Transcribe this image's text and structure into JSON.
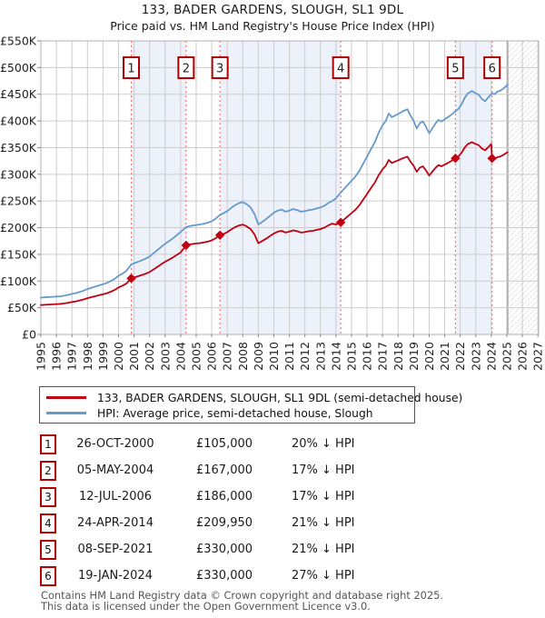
{
  "title": "133, BADER GARDENS, SLOUGH, SL1 9DL",
  "subtitle": "Price paid vs. HM Land Registry's House Price Index (HPI)",
  "sales": [
    {
      "n": "1",
      "date": "26-OCT-2000",
      "price": "£105,000",
      "pct": "20% ↓ HPI",
      "year": 2000.82,
      "value_k": 105
    },
    {
      "n": "2",
      "date": "05-MAY-2004",
      "price": "£167,000",
      "pct": "17% ↓ HPI",
      "year": 2004.35,
      "value_k": 167
    },
    {
      "n": "3",
      "date": "12-JUL-2006",
      "price": "£186,000",
      "pct": "17% ↓ HPI",
      "year": 2006.53,
      "value_k": 186
    },
    {
      "n": "4",
      "date": "24-APR-2014",
      "price": "£209,950",
      "pct": "21% ↓ HPI",
      "year": 2014.31,
      "value_k": 209.95
    },
    {
      "n": "5",
      "date": "08-SEP-2021",
      "price": "£330,000",
      "pct": "21% ↓ HPI",
      "year": 2021.69,
      "value_k": 330
    },
    {
      "n": "6",
      "date": "19-JAN-2024",
      "price": "£330,000",
      "pct": "27% ↓ HPI",
      "year": 2024.05,
      "value_k": 330
    }
  ],
  "footer": {
    "line1": "Contains HM Land Registry data © Crown copyright and database right 2025.",
    "line2": "This data is licensed under the Open Government Licence v3.0."
  },
  "colors": {
    "price_line": "#c00010",
    "hpi_line": "#6699cc",
    "sale_dashed": "#ff7070",
    "band": "#edf1fa",
    "grid": "#cccccc",
    "plot_border": "#b0b0b0",
    "flag_border": "#b00000",
    "hatch": "#c4c4c4",
    "future_edge": "#999999"
  },
  "chart_data": {
    "type": "line",
    "title": "133, BADER GARDENS, SLOUGH, SL1 9DL",
    "subtitle": "Price paid vs. HM Land Registry's House Price Index (HPI)",
    "xlim": [
      1995,
      2027.05
    ],
    "ylim_k": [
      0,
      550
    ],
    "x_ticks": [
      1995,
      1996,
      1997,
      1998,
      1999,
      2000,
      2001,
      2002,
      2003,
      2004,
      2005,
      2006,
      2007,
      2008,
      2009,
      2010,
      2011,
      2012,
      2013,
      2014,
      2015,
      2016,
      2017,
      2018,
      2019,
      2020,
      2021,
      2022,
      2023,
      2024,
      2025,
      2026,
      2027
    ],
    "y_ticks_k": [
      0,
      50,
      100,
      150,
      200,
      250,
      300,
      350,
      400,
      450,
      500,
      550
    ],
    "y_tick_labels": [
      "£0",
      "£50K",
      "£100K",
      "£150K",
      "£200K",
      "£250K",
      "£300K",
      "£350K",
      "£400K",
      "£450K",
      "£500K",
      "£550K"
    ],
    "grid": true,
    "legend_position": "below",
    "ownership_bands": [
      [
        2000.82,
        2004.35
      ],
      [
        2006.53,
        2014.31
      ],
      [
        2021.69,
        2024.05
      ]
    ],
    "future_from": 2025.05,
    "series": [
      {
        "name": "133, BADER GARDENS, SLOUGH, SL1 9DL (semi-detached house)",
        "color": "#c00010",
        "points": [
          [
            1995.0,
            55
          ],
          [
            1995.25,
            55.5
          ],
          [
            1995.5,
            56
          ],
          [
            1995.75,
            56.3
          ],
          [
            1996.0,
            56.8
          ],
          [
            1996.25,
            57.2
          ],
          [
            1996.5,
            58
          ],
          [
            1996.75,
            59.2
          ],
          [
            1997.0,
            60.8
          ],
          [
            1997.25,
            62
          ],
          [
            1997.5,
            63.6
          ],
          [
            1997.75,
            65.6
          ],
          [
            1998.0,
            68
          ],
          [
            1998.25,
            70
          ],
          [
            1998.5,
            71.6
          ],
          [
            1998.75,
            73.6
          ],
          [
            1999.0,
            75.2
          ],
          [
            1999.25,
            77.2
          ],
          [
            1999.5,
            80
          ],
          [
            1999.75,
            83.2
          ],
          [
            2000.0,
            88
          ],
          [
            2000.25,
            91.2
          ],
          [
            2000.5,
            95.2
          ],
          [
            2000.82,
            105
          ],
          [
            2001.0,
            107
          ],
          [
            2001.25,
            109
          ],
          [
            2001.5,
            111.3
          ],
          [
            2001.75,
            113.7
          ],
          [
            2002.0,
            117
          ],
          [
            2002.25,
            121.8
          ],
          [
            2002.5,
            126.6
          ],
          [
            2002.75,
            131.4
          ],
          [
            2003.0,
            136.2
          ],
          [
            2003.25,
            140.2
          ],
          [
            2003.5,
            144.2
          ],
          [
            2003.75,
            149
          ],
          [
            2004.0,
            153.8
          ],
          [
            2004.35,
            167
          ],
          [
            2004.5,
            168.3
          ],
          [
            2004.75,
            169.5
          ],
          [
            2005.0,
            170.4
          ],
          [
            2005.25,
            171.2
          ],
          [
            2005.5,
            172.4
          ],
          [
            2005.75,
            174.1
          ],
          [
            2006.0,
            176.2
          ],
          [
            2006.25,
            180.3
          ],
          [
            2006.53,
            186
          ],
          [
            2006.75,
            188.4
          ],
          [
            2007.0,
            191.7
          ],
          [
            2007.25,
            196.7
          ],
          [
            2007.5,
            200.9
          ],
          [
            2007.75,
            204.2
          ],
          [
            2008.0,
            205.8
          ],
          [
            2008.25,
            202.5
          ],
          [
            2008.5,
            197.5
          ],
          [
            2008.75,
            187.6
          ],
          [
            2009.0,
            171
          ],
          [
            2009.25,
            175.1
          ],
          [
            2009.5,
            179.3
          ],
          [
            2009.75,
            184.3
          ],
          [
            2010.0,
            189.2
          ],
          [
            2010.25,
            192.6
          ],
          [
            2010.5,
            194.2
          ],
          [
            2010.75,
            190.9
          ],
          [
            2011.0,
            192.6
          ],
          [
            2011.25,
            195
          ],
          [
            2011.5,
            193.4
          ],
          [
            2011.75,
            190.9
          ],
          [
            2012.0,
            191.7
          ],
          [
            2012.25,
            193.4
          ],
          [
            2012.5,
            194.2
          ],
          [
            2012.75,
            195.9
          ],
          [
            2013.0,
            197.5
          ],
          [
            2013.25,
            200
          ],
          [
            2013.5,
            204.2
          ],
          [
            2013.75,
            207.5
          ],
          [
            2014.0,
            206
          ],
          [
            2014.31,
            209.95
          ],
          [
            2014.5,
            214.7
          ],
          [
            2014.75,
            221
          ],
          [
            2015.0,
            227.4
          ],
          [
            2015.25,
            233.7
          ],
          [
            2015.5,
            241.6
          ],
          [
            2015.75,
            252.7
          ],
          [
            2016.0,
            263
          ],
          [
            2016.25,
            274
          ],
          [
            2016.5,
            284.3
          ],
          [
            2016.75,
            298.5
          ],
          [
            2017.0,
            309.6
          ],
          [
            2017.2,
            315.9
          ],
          [
            2017.4,
            327
          ],
          [
            2017.6,
            321.4
          ],
          [
            2017.8,
            323.8
          ],
          [
            2018.0,
            326.1
          ],
          [
            2018.3,
            330.1
          ],
          [
            2018.6,
            333.2
          ],
          [
            2018.8,
            323.8
          ],
          [
            2019.0,
            315.9
          ],
          [
            2019.2,
            304.8
          ],
          [
            2019.4,
            312.7
          ],
          [
            2019.6,
            315.1
          ],
          [
            2019.8,
            307.2
          ],
          [
            2020.0,
            297.7
          ],
          [
            2020.2,
            304.8
          ],
          [
            2020.4,
            311.9
          ],
          [
            2020.6,
            317.4
          ],
          [
            2020.8,
            315.1
          ],
          [
            2021.0,
            318.2
          ],
          [
            2021.2,
            321.4
          ],
          [
            2021.4,
            324.5
          ],
          [
            2021.69,
            330
          ],
          [
            2021.9,
            334
          ],
          [
            2022.1,
            341.1
          ],
          [
            2022.3,
            350.6
          ],
          [
            2022.5,
            356.9
          ],
          [
            2022.75,
            360.1
          ],
          [
            2023.0,
            356.9
          ],
          [
            2023.2,
            354.5
          ],
          [
            2023.4,
            348.2
          ],
          [
            2023.6,
            345
          ],
          [
            2023.8,
            350.6
          ],
          [
            2024.0,
            356.9
          ],
          [
            2024.05,
            330
          ],
          [
            2024.2,
            328.5
          ],
          [
            2024.4,
            332.2
          ],
          [
            2024.6,
            333.6
          ],
          [
            2024.8,
            336.6
          ],
          [
            2025.05,
            341.6
          ]
        ]
      },
      {
        "name": "HPI: Average price, semi-detached house, Slough",
        "color": "#6699cc",
        "points": [
          [
            1995.0,
            69
          ],
          [
            1995.25,
            69.5
          ],
          [
            1995.5,
            70
          ],
          [
            1995.75,
            70.5
          ],
          [
            1996.0,
            71
          ],
          [
            1996.25,
            71.5
          ],
          [
            1996.5,
            72.5
          ],
          [
            1996.75,
            74
          ],
          [
            1997.0,
            76
          ],
          [
            1997.25,
            77.5
          ],
          [
            1997.5,
            79.5
          ],
          [
            1997.75,
            82
          ],
          [
            1998.0,
            85
          ],
          [
            1998.25,
            87.5
          ],
          [
            1998.5,
            89.5
          ],
          [
            1998.75,
            92
          ],
          [
            1999.0,
            94
          ],
          [
            1999.25,
            96.5
          ],
          [
            1999.5,
            100
          ],
          [
            1999.75,
            104
          ],
          [
            2000.0,
            110
          ],
          [
            2000.25,
            114
          ],
          [
            2000.5,
            119
          ],
          [
            2000.82,
            131
          ],
          [
            2001.0,
            133.5
          ],
          [
            2001.25,
            136
          ],
          [
            2001.5,
            139
          ],
          [
            2001.75,
            142
          ],
          [
            2002.0,
            146
          ],
          [
            2002.25,
            152
          ],
          [
            2002.5,
            158
          ],
          [
            2002.75,
            164
          ],
          [
            2003.0,
            170
          ],
          [
            2003.25,
            175
          ],
          [
            2003.5,
            180
          ],
          [
            2003.75,
            186
          ],
          [
            2004.0,
            192
          ],
          [
            2004.35,
            201
          ],
          [
            2004.5,
            202.5
          ],
          [
            2004.75,
            204
          ],
          [
            2005.0,
            205
          ],
          [
            2005.25,
            206
          ],
          [
            2005.5,
            207.5
          ],
          [
            2005.75,
            209.5
          ],
          [
            2006.0,
            212
          ],
          [
            2006.25,
            217
          ],
          [
            2006.53,
            224
          ],
          [
            2006.75,
            227
          ],
          [
            2007.0,
            231
          ],
          [
            2007.25,
            237
          ],
          [
            2007.5,
            242
          ],
          [
            2007.75,
            246
          ],
          [
            2008.0,
            248
          ],
          [
            2008.25,
            244
          ],
          [
            2008.5,
            238
          ],
          [
            2008.75,
            226
          ],
          [
            2009.0,
            206
          ],
          [
            2009.25,
            211
          ],
          [
            2009.5,
            216
          ],
          [
            2009.75,
            222
          ],
          [
            2010.0,
            228
          ],
          [
            2010.25,
            232
          ],
          [
            2010.5,
            234
          ],
          [
            2010.75,
            230
          ],
          [
            2011.0,
            232
          ],
          [
            2011.25,
            235
          ],
          [
            2011.5,
            233
          ],
          [
            2011.75,
            230
          ],
          [
            2012.0,
            231
          ],
          [
            2012.25,
            233
          ],
          [
            2012.5,
            234
          ],
          [
            2012.75,
            236
          ],
          [
            2013.0,
            238
          ],
          [
            2013.25,
            241
          ],
          [
            2013.5,
            246
          ],
          [
            2013.75,
            250
          ],
          [
            2014.0,
            255
          ],
          [
            2014.31,
            266
          ],
          [
            2014.5,
            272
          ],
          [
            2014.75,
            280
          ],
          [
            2015.0,
            288
          ],
          [
            2015.25,
            296
          ],
          [
            2015.5,
            306
          ],
          [
            2015.75,
            320
          ],
          [
            2016.0,
            333
          ],
          [
            2016.25,
            347
          ],
          [
            2016.5,
            360
          ],
          [
            2016.75,
            378
          ],
          [
            2017.0,
            392
          ],
          [
            2017.2,
            400
          ],
          [
            2017.4,
            414
          ],
          [
            2017.6,
            407
          ],
          [
            2017.8,
            410
          ],
          [
            2018.0,
            413
          ],
          [
            2018.3,
            418
          ],
          [
            2018.6,
            422
          ],
          [
            2018.8,
            410
          ],
          [
            2019.0,
            400
          ],
          [
            2019.2,
            386
          ],
          [
            2019.4,
            396
          ],
          [
            2019.6,
            399
          ],
          [
            2019.8,
            389
          ],
          [
            2020.0,
            377
          ],
          [
            2020.2,
            386
          ],
          [
            2020.4,
            395
          ],
          [
            2020.6,
            402
          ],
          [
            2020.8,
            399
          ],
          [
            2021.0,
            403
          ],
          [
            2021.2,
            407
          ],
          [
            2021.4,
            411
          ],
          [
            2021.69,
            418
          ],
          [
            2021.9,
            423
          ],
          [
            2022.1,
            432
          ],
          [
            2022.3,
            444
          ],
          [
            2022.5,
            452
          ],
          [
            2022.75,
            456
          ],
          [
            2023.0,
            452
          ],
          [
            2023.2,
            449
          ],
          [
            2023.4,
            441
          ],
          [
            2023.6,
            437
          ],
          [
            2023.8,
            444
          ],
          [
            2024.05,
            452
          ],
          [
            2024.2,
            450
          ],
          [
            2024.4,
            455
          ],
          [
            2024.6,
            457
          ],
          [
            2024.8,
            461
          ],
          [
            2025.05,
            468
          ]
        ]
      }
    ]
  }
}
